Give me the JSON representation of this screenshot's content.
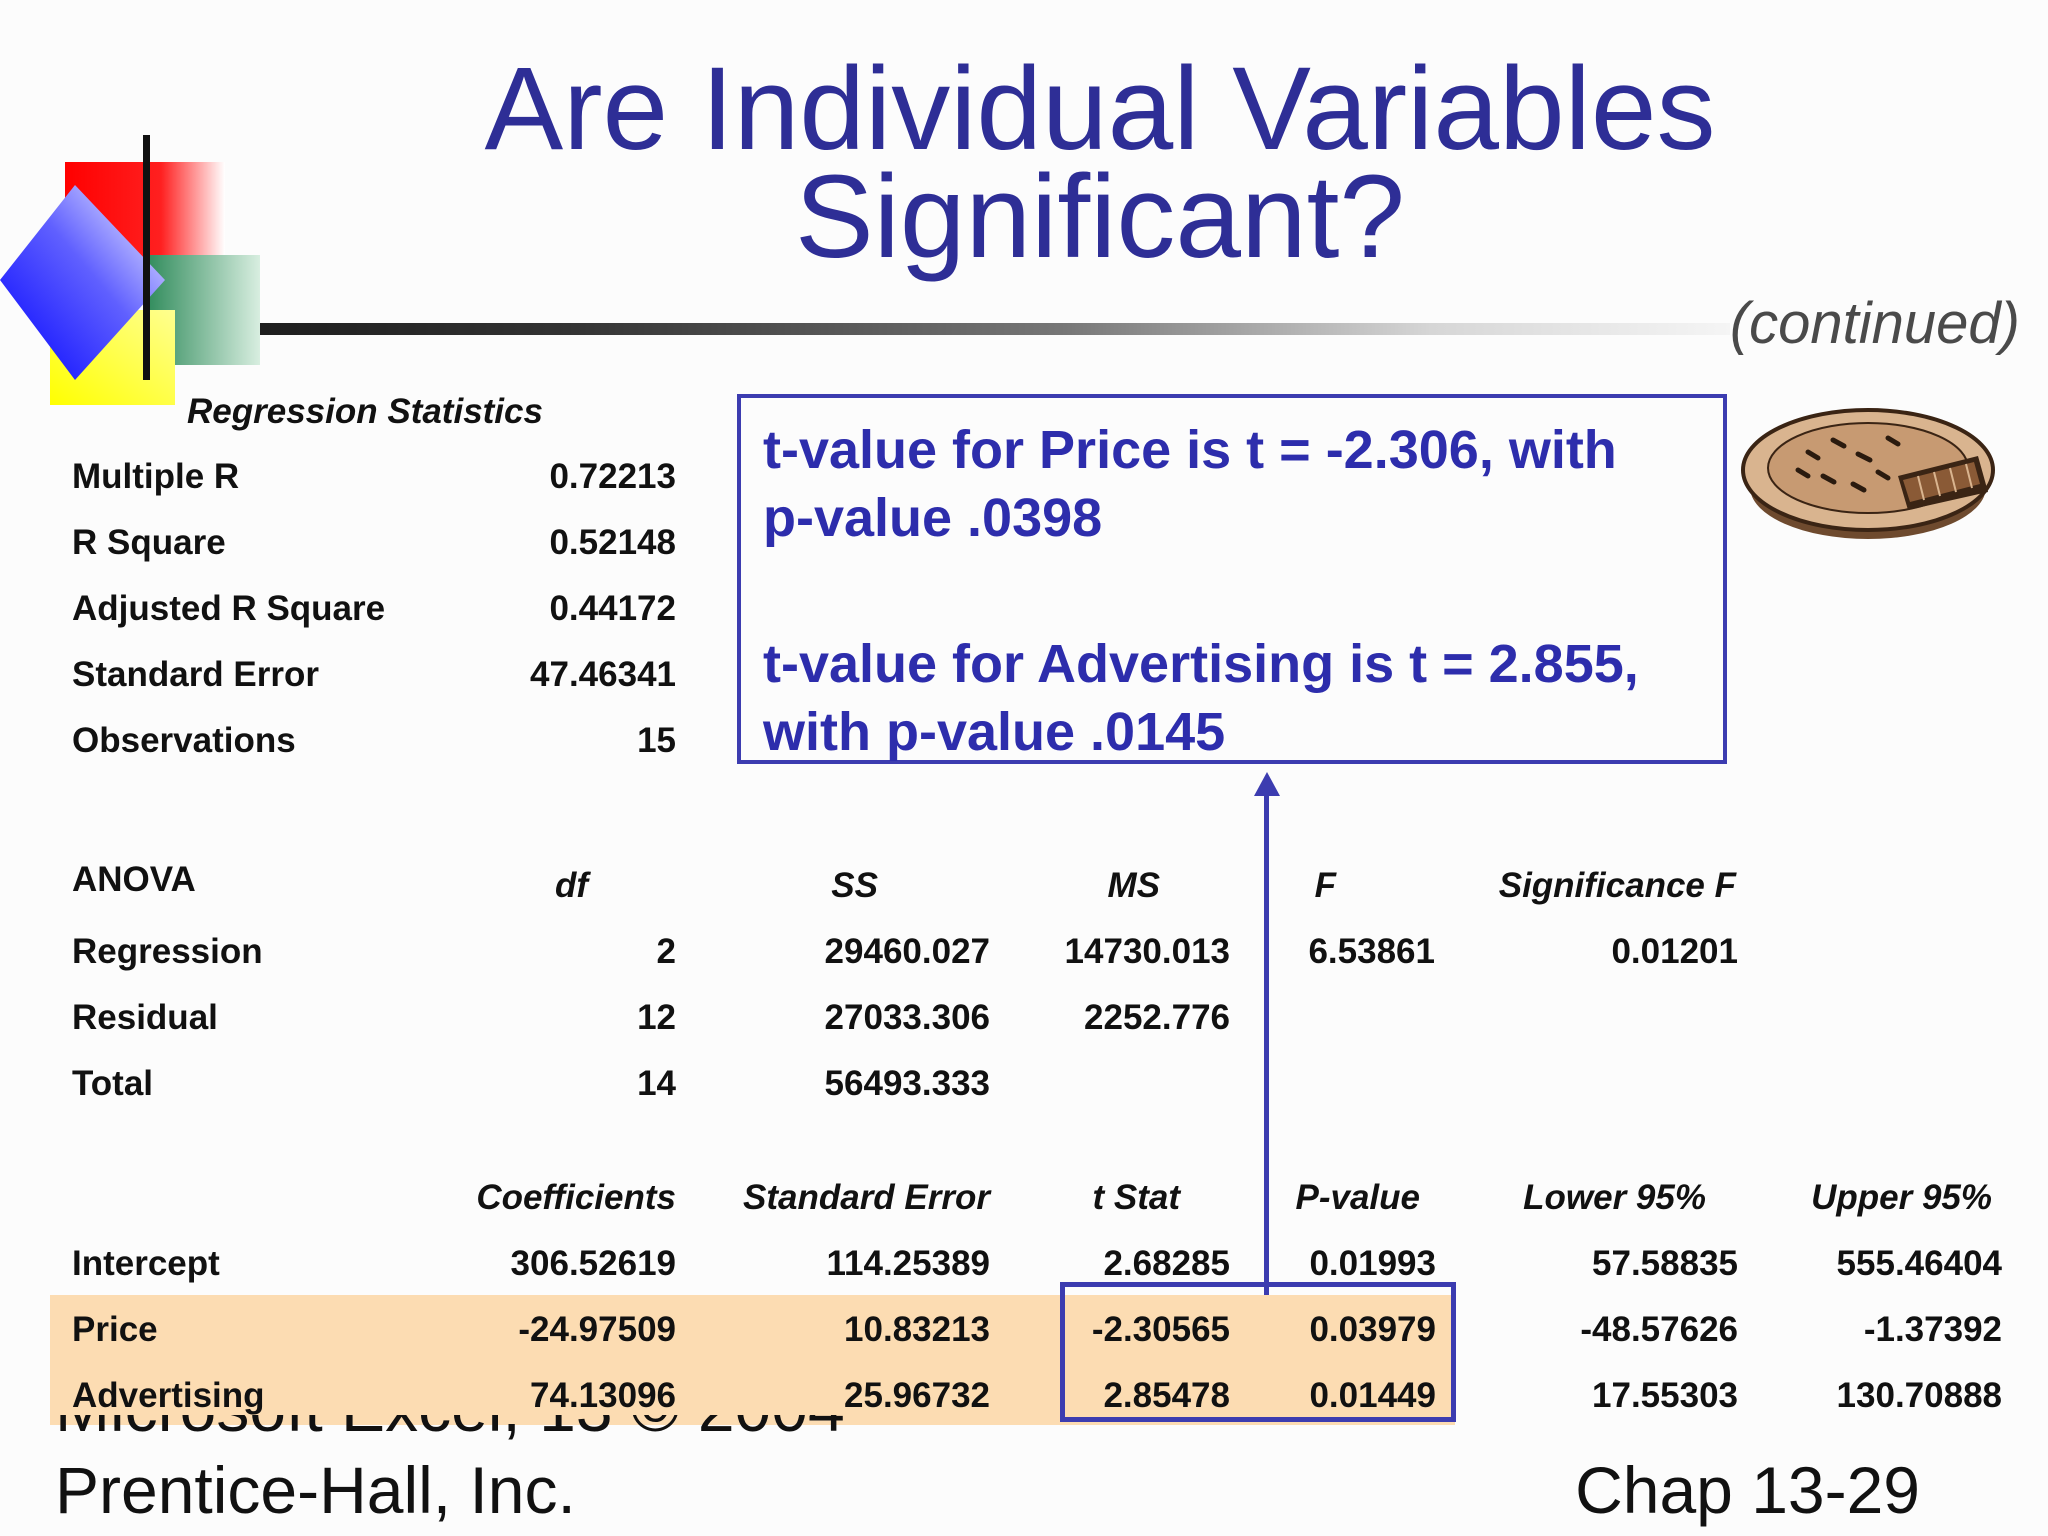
{
  "title_line1": "Are Individual Variables",
  "title_line2": "Significant?",
  "continued": "(continued)",
  "callout": {
    "line1": "t-value for Price is  t = -2.306, with",
    "line2": "p-value .0398",
    "line3": "t-value for Advertising is t = 2.855,",
    "line4": "with p-value .0145"
  },
  "regression_stats": {
    "heading": "Regression Statistics",
    "rows": [
      {
        "label": "Multiple R",
        "value": "0.72213"
      },
      {
        "label": "R Square",
        "value": "0.52148"
      },
      {
        "label": "Adjusted R Square",
        "value": "0.44172"
      },
      {
        "label": "Standard Error",
        "value": "47.46341"
      },
      {
        "label": "Observations",
        "value": "15"
      }
    ]
  },
  "anova": {
    "heading": "ANOVA",
    "columns": [
      "df",
      "SS",
      "MS",
      "F",
      "Significance F"
    ],
    "rows": [
      {
        "label": "Regression",
        "df": "2",
        "ss": "29460.027",
        "ms": "14730.013",
        "f": "6.53861",
        "sigf": "0.01201"
      },
      {
        "label": "Residual",
        "df": "12",
        "ss": "27033.306",
        "ms": "2252.776",
        "f": "",
        "sigf": ""
      },
      {
        "label": "Total",
        "df": "14",
        "ss": "56493.333",
        "ms": "",
        "f": "",
        "sigf": ""
      }
    ]
  },
  "coefficients": {
    "columns": [
      "Coefficients",
      "Standard Error",
      "t Stat",
      "P-value",
      "Lower 95%",
      "Upper 95%"
    ],
    "rows": [
      {
        "label": "Intercept",
        "coef": "306.52619",
        "se": "114.25389",
        "t": "2.68285",
        "p": "0.01993",
        "lo": "57.58835",
        "hi": "555.46404"
      },
      {
        "label": "Price",
        "coef": "-24.97509",
        "se": "10.83213",
        "t": "-2.30565",
        "p": "0.03979",
        "lo": "-48.57626",
        "hi": "-1.37392"
      },
      {
        "label": "Advertising",
        "coef": "74.13096",
        "se": "25.96732",
        "t": "2.85478",
        "p": "0.01449",
        "lo": "17.55303",
        "hi": "130.70888"
      }
    ]
  },
  "footer": {
    "left_cut": "Microsoft Excel, 13 © 2004",
    "left": "Prentice-Hall, Inc.",
    "right": "Chap 13-29"
  },
  "colors": {
    "title": "#2e2e96",
    "accent": "#3c3cb0",
    "highlight": "#fcdcb2"
  }
}
